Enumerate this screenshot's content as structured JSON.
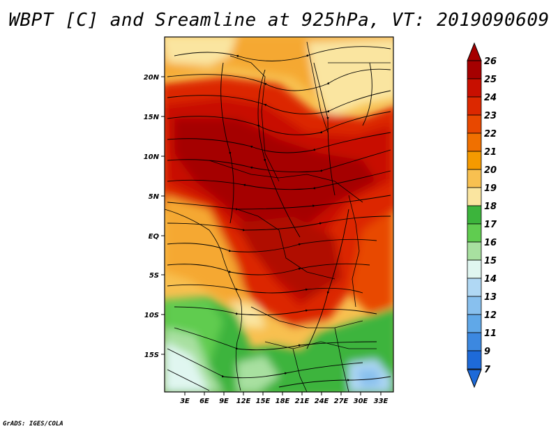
{
  "title": "WBPT [C] and Sreamline at 925hPa, VT: 2019090609",
  "credit": "GrADS: IGES/COLA",
  "map": {
    "lat_labels": [
      "20N",
      "15N",
      "10N",
      "5N",
      "EQ",
      "5S",
      "10S",
      "15S"
    ],
    "lon_labels": [
      "3E",
      "6E",
      "9E",
      "12E",
      "15E",
      "18E",
      "21E",
      "24E",
      "27E",
      "30E",
      "33E"
    ]
  },
  "colorbar": {
    "labels": [
      "26",
      "25",
      "24",
      "23",
      "22",
      "21",
      "20",
      "19",
      "18",
      "17",
      "16",
      "15",
      "14",
      "13",
      "12",
      "11",
      "9",
      "7"
    ],
    "colors": [
      "#a50000",
      "#c80f00",
      "#dc2800",
      "#e84800",
      "#f07000",
      "#f59a00",
      "#f8c050",
      "#fae5a0",
      "#3cb43c",
      "#60cc50",
      "#a8e0a0",
      "#e0f6f0",
      "#b0d8f4",
      "#88c0ee",
      "#60a8e8",
      "#3c88e0",
      "#1e6ad8"
    ]
  }
}
